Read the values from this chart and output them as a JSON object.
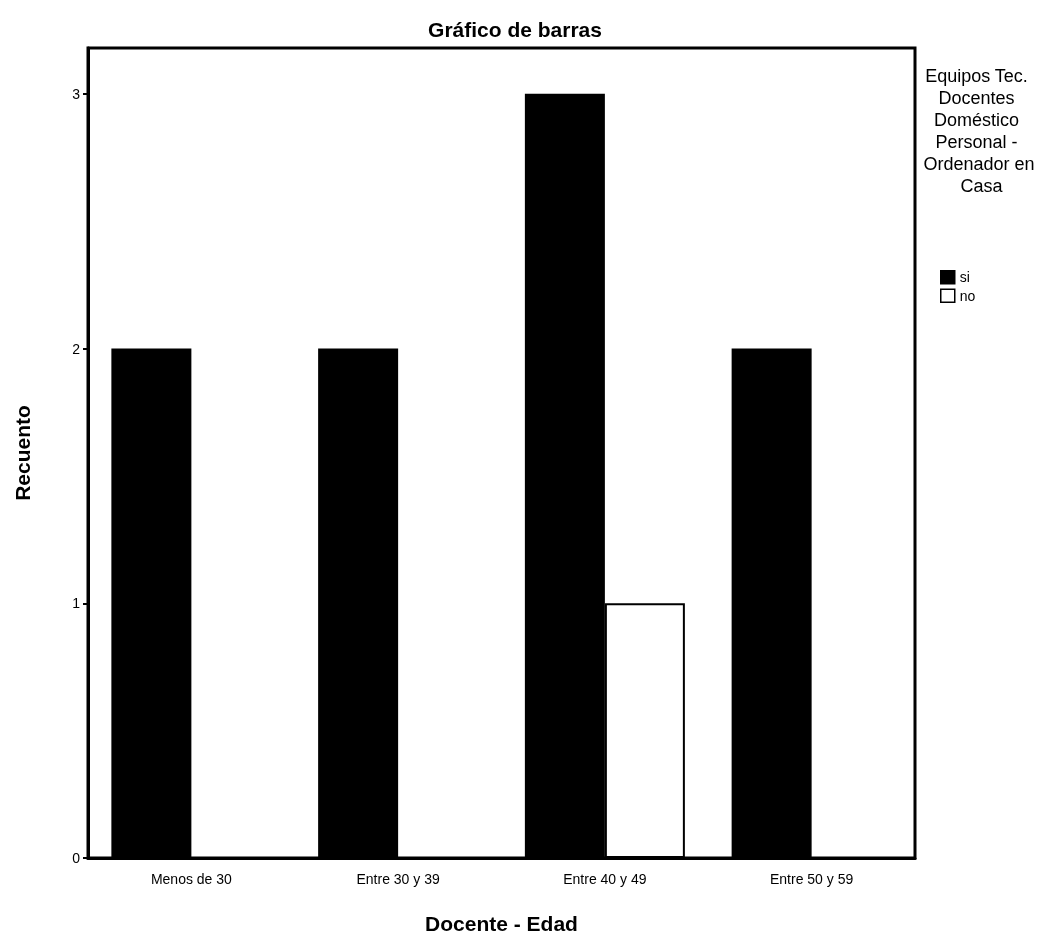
{
  "chart_data": {
    "type": "bar",
    "title": "Gráfico de barras",
    "xlabel": "Docente - Edad",
    "ylabel": "Recuento",
    "legend_title": "Equipos Tec. Docentes Doméstico Personal - Ordenador en Casa",
    "categories": [
      "Menos de 30",
      "Entre 30 y 39",
      "Entre 40 y 49",
      "Entre 50 y 59"
    ],
    "series": [
      {
        "name": "si",
        "color": "#000000",
        "values": [
          2,
          2,
          3,
          2
        ]
      },
      {
        "name": "no",
        "color": "#ffffff",
        "values": [
          0,
          0,
          1,
          0
        ]
      }
    ],
    "ylim": [
      0,
      3.18
    ],
    "yticks": [
      0,
      1,
      2,
      3
    ],
    "grid": false,
    "legend": "top right"
  }
}
